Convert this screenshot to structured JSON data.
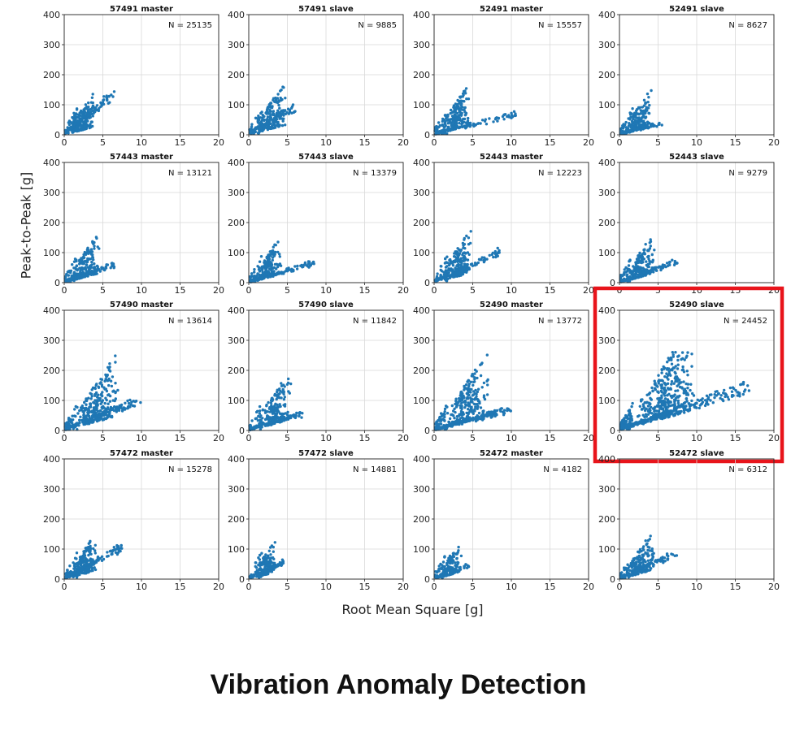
{
  "figure": {
    "ylabel": "Peak-to-Peak [g]",
    "xlabel": "Root Mean Square [g]",
    "footer_title": "Vibration Anomaly Detection",
    "highlight_panel": "52490 slave",
    "highlight_color": "#e8141b",
    "point_color": "#1f77b4"
  },
  "chart_data": [
    {
      "type": "scatter",
      "title": "57491 master",
      "annotation": "N = 25135",
      "xlim": [
        0,
        20
      ],
      "ylim": [
        0,
        400
      ],
      "xticks": [
        0,
        5,
        10,
        15,
        20
      ],
      "yticks": [
        0,
        100,
        200,
        300,
        400
      ],
      "grid": true,
      "shape": {
        "rms_peak": 2.8,
        "rms_max": 6.5,
        "p2p_peak": 260,
        "tail_x": 5.5,
        "tail_y": 110,
        "n": 330
      }
    },
    {
      "type": "scatter",
      "title": "57491 slave",
      "annotation": "N = 9885",
      "xlim": [
        0,
        20
      ],
      "ylim": [
        0,
        400
      ],
      "xticks": [
        0,
        5,
        10,
        15,
        20
      ],
      "yticks": [
        0,
        100,
        200,
        300,
        400
      ],
      "grid": true,
      "shape": {
        "rms_peak": 3.3,
        "rms_max": 6.0,
        "p2p_peak": 250,
        "tail_x": 5.5,
        "tail_y": 80,
        "n": 300
      }
    },
    {
      "type": "scatter",
      "title": "52491 master",
      "annotation": "N = 15557",
      "xlim": [
        0,
        20
      ],
      "ylim": [
        0,
        400
      ],
      "xticks": [
        0,
        5,
        10,
        15,
        20
      ],
      "yticks": [
        0,
        100,
        200,
        300,
        400
      ],
      "grid": true,
      "shape": {
        "rms_peak": 3.2,
        "rms_max": 11.0,
        "p2p_peak": 155,
        "tail_x": 11.0,
        "tail_y": 65,
        "n": 320
      }
    },
    {
      "type": "scatter",
      "title": "52491 slave",
      "annotation": "N = 8627",
      "xlim": [
        0,
        20
      ],
      "ylim": [
        0,
        400
      ],
      "xticks": [
        0,
        5,
        10,
        15,
        20
      ],
      "yticks": [
        0,
        100,
        200,
        300,
        400
      ],
      "grid": true,
      "shape": {
        "rms_peak": 3.0,
        "rms_max": 5.5,
        "p2p_peak": 150,
        "tail_x": 5.5,
        "tail_y": 35,
        "n": 260
      }
    },
    {
      "type": "scatter",
      "title": "57443 master",
      "annotation": "N = 13121",
      "xlim": [
        0,
        20
      ],
      "ylim": [
        0,
        400
      ],
      "xticks": [
        0,
        5,
        10,
        15,
        20
      ],
      "yticks": [
        0,
        100,
        200,
        300,
        400
      ],
      "grid": true,
      "shape": {
        "rms_peak": 3.2,
        "rms_max": 6.5,
        "p2p_peak": 200,
        "tail_x": 6.5,
        "tail_y": 55,
        "n": 300
      }
    },
    {
      "type": "scatter",
      "title": "57443 slave",
      "annotation": "N = 13379",
      "xlim": [
        0,
        20
      ],
      "ylim": [
        0,
        400
      ],
      "xticks": [
        0,
        5,
        10,
        15,
        20
      ],
      "yticks": [
        0,
        100,
        200,
        300,
        400
      ],
      "grid": true,
      "shape": {
        "rms_peak": 3.0,
        "rms_max": 8.5,
        "p2p_peak": 190,
        "tail_x": 8.5,
        "tail_y": 60,
        "n": 300
      }
    },
    {
      "type": "scatter",
      "title": "52443 master",
      "annotation": "N = 12223",
      "xlim": [
        0,
        20
      ],
      "ylim": [
        0,
        400
      ],
      "xticks": [
        0,
        5,
        10,
        15,
        20
      ],
      "yticks": [
        0,
        100,
        200,
        300,
        400
      ],
      "grid": true,
      "shape": {
        "rms_peak": 3.5,
        "rms_max": 8.5,
        "p2p_peak": 210,
        "tail_x": 8.5,
        "tail_y": 95,
        "n": 300
      }
    },
    {
      "type": "scatter",
      "title": "52443 slave",
      "annotation": "N = 9279",
      "xlim": [
        0,
        20
      ],
      "ylim": [
        0,
        400
      ],
      "xticks": [
        0,
        5,
        10,
        15,
        20
      ],
      "yticks": [
        0,
        100,
        200,
        300,
        400
      ],
      "grid": true,
      "shape": {
        "rms_peak": 3.2,
        "rms_max": 7.5,
        "p2p_peak": 195,
        "tail_x": 7.5,
        "tail_y": 65,
        "n": 280
      }
    },
    {
      "type": "scatter",
      "title": "57490 master",
      "annotation": "N = 13614",
      "xlim": [
        0,
        20
      ],
      "ylim": [
        0,
        400
      ],
      "xticks": [
        0,
        5,
        10,
        15,
        20
      ],
      "yticks": [
        0,
        100,
        200,
        300,
        400
      ],
      "grid": true,
      "shape": {
        "rms_peak": 5.0,
        "rms_max": 10.0,
        "p2p_peak": 270,
        "tail_x": 10.0,
        "tail_y": 95,
        "n": 420
      }
    },
    {
      "type": "scatter",
      "title": "57490 slave",
      "annotation": "N = 11842",
      "xlim": [
        0,
        20
      ],
      "ylim": [
        0,
        400
      ],
      "xticks": [
        0,
        5,
        10,
        15,
        20
      ],
      "yticks": [
        0,
        100,
        200,
        300,
        400
      ],
      "grid": true,
      "shape": {
        "rms_peak": 4.0,
        "rms_max": 7.0,
        "p2p_peak": 230,
        "tail_x": 7.0,
        "tail_y": 50,
        "n": 330
      }
    },
    {
      "type": "scatter",
      "title": "52490 master",
      "annotation": "N = 13772",
      "xlim": [
        0,
        20
      ],
      "ylim": [
        0,
        400
      ],
      "xticks": [
        0,
        5,
        10,
        15,
        20
      ],
      "yticks": [
        0,
        100,
        200,
        300,
        400
      ],
      "grid": true,
      "shape": {
        "rms_peak": 5.0,
        "rms_max": 10.0,
        "p2p_peak": 400,
        "tail_x": 10.0,
        "tail_y": 65,
        "n": 420
      }
    },
    {
      "type": "scatter",
      "title": "52490 slave",
      "annotation": "N = 24452",
      "xlim": [
        0,
        20
      ],
      "ylim": [
        0,
        400
      ],
      "xticks": [
        0,
        5,
        10,
        15,
        20
      ],
      "yticks": [
        0,
        100,
        200,
        300,
        400
      ],
      "grid": true,
      "shape": {
        "rms_peak": 7.0,
        "rms_max": 17.0,
        "p2p_peak": 275,
        "tail_x": 17.0,
        "tail_y": 140,
        "n": 700
      }
    },
    {
      "type": "scatter",
      "title": "57472 master",
      "annotation": "N = 15278",
      "xlim": [
        0,
        20
      ],
      "ylim": [
        0,
        400
      ],
      "xticks": [
        0,
        5,
        10,
        15,
        20
      ],
      "yticks": [
        0,
        100,
        200,
        300,
        400
      ],
      "grid": true,
      "shape": {
        "rms_peak": 3.0,
        "rms_max": 7.5,
        "p2p_peak": 230,
        "tail_x": 7.5,
        "tail_y": 100,
        "n": 330
      }
    },
    {
      "type": "scatter",
      "title": "57472 slave",
      "annotation": "N = 14881",
      "xlim": [
        0,
        20
      ],
      "ylim": [
        0,
        400
      ],
      "xticks": [
        0,
        5,
        10,
        15,
        20
      ],
      "yticks": [
        0,
        100,
        200,
        300,
        400
      ],
      "grid": true,
      "shape": {
        "rms_peak": 2.5,
        "rms_max": 4.5,
        "p2p_peak": 155,
        "tail_x": 4.5,
        "tail_y": 50,
        "n": 220
      }
    },
    {
      "type": "scatter",
      "title": "52472 master",
      "annotation": "N = 4182",
      "xlim": [
        0,
        20
      ],
      "ylim": [
        0,
        400
      ],
      "xticks": [
        0,
        5,
        10,
        15,
        20
      ],
      "yticks": [
        0,
        100,
        200,
        300,
        400
      ],
      "grid": true,
      "shape": {
        "rms_peak": 2.5,
        "rms_max": 4.5,
        "p2p_peak": 120,
        "tail_x": 4.5,
        "tail_y": 40,
        "n": 200
      }
    },
    {
      "type": "scatter",
      "title": "52472 slave",
      "annotation": "N = 6312",
      "xlim": [
        0,
        20
      ],
      "ylim": [
        0,
        400
      ],
      "xticks": [
        0,
        5,
        10,
        15,
        20
      ],
      "yticks": [
        0,
        100,
        200,
        300,
        400
      ],
      "grid": true,
      "shape": {
        "rms_peak": 3.2,
        "rms_max": 7.5,
        "p2p_peak": 195,
        "tail_x": 7.5,
        "tail_y": 80,
        "n": 280
      }
    }
  ]
}
